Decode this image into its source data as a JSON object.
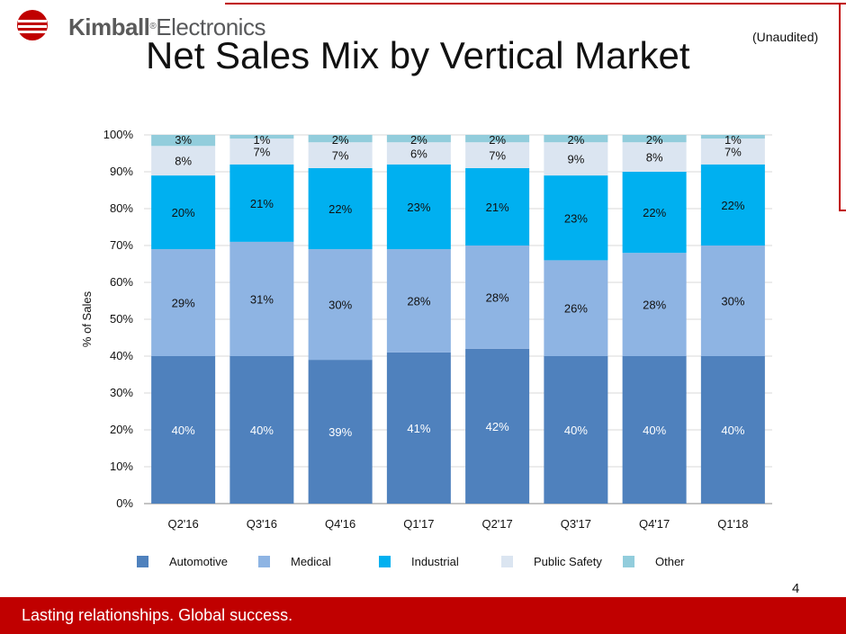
{
  "brand": {
    "name_bold": "Kimball",
    "name_rest": "Electronics",
    "trademark": "®"
  },
  "header": {
    "title": "Net Sales Mix by Vertical Market",
    "note": "(Unaudited)"
  },
  "page": {
    "number": "4"
  },
  "footer": {
    "tagline": "Lasting relationships. Global success."
  },
  "colors": {
    "brand_red": "#c00000",
    "Automotive": "#4f81bd",
    "Medical": "#8eb4e3",
    "Industrial": "#00b0f0",
    "Public Safety": "#dbe5f1",
    "Other": "#92cddc"
  },
  "chart_data": {
    "type": "bar",
    "stacked": true,
    "categories": [
      "Q2'16",
      "Q3'16",
      "Q4'16",
      "Q1'17",
      "Q2'17",
      "Q3'17",
      "Q4'17",
      "Q1'18"
    ],
    "series": [
      {
        "name": "Automotive",
        "values": [
          40,
          40,
          39,
          41,
          42,
          40,
          40,
          40
        ],
        "labels": [
          "40%",
          "40%",
          "39%",
          "41%",
          "42%",
          "40%",
          "40%",
          "40%"
        ]
      },
      {
        "name": "Medical",
        "values": [
          29,
          31,
          30,
          28,
          28,
          26,
          28,
          30
        ],
        "labels": [
          "29%",
          "31%",
          "30%",
          "28%",
          "28%",
          "26%",
          "28%",
          "30%"
        ]
      },
      {
        "name": "Industrial",
        "values": [
          20,
          21,
          22,
          23,
          21,
          23,
          22,
          22
        ],
        "labels": [
          "20%",
          "21%",
          "22%",
          "23%",
          "21%",
          "23%",
          "22%",
          "22%"
        ]
      },
      {
        "name": "Public Safety",
        "values": [
          8,
          7,
          7,
          6,
          7,
          9,
          8,
          7
        ],
        "labels": [
          "8%",
          "7%",
          "7%",
          "6%",
          "7%",
          "9%",
          "8%",
          "7%"
        ]
      },
      {
        "name": "Other",
        "values": [
          3,
          1,
          2,
          2,
          2,
          2,
          2,
          1
        ],
        "labels": [
          "3%",
          "1%",
          "2%",
          "2%",
          "2%",
          "2%",
          "2%",
          "1%"
        ]
      }
    ],
    "ylabel": "% of Sales",
    "xlabel": "",
    "ylim": [
      0,
      100
    ],
    "yticks": [
      "0%",
      "10%",
      "20%",
      "30%",
      "40%",
      "50%",
      "60%",
      "70%",
      "80%",
      "90%",
      "100%"
    ],
    "grid": true,
    "legend_position": "bottom"
  }
}
